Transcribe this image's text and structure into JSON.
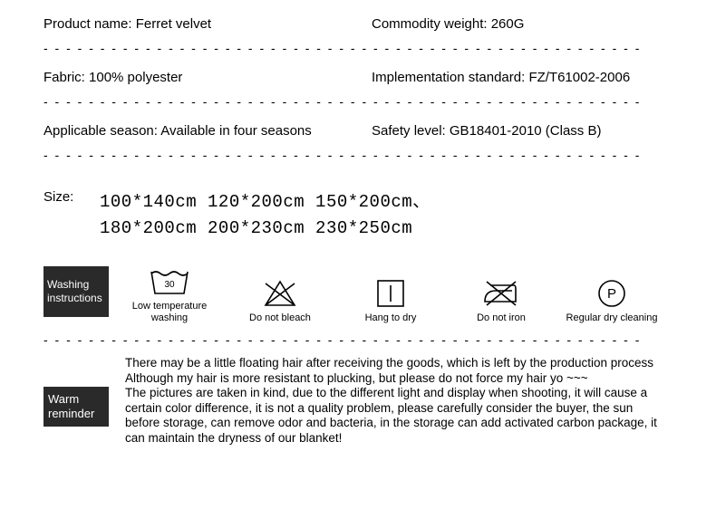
{
  "specs": {
    "productName": {
      "label": "Product name:",
      "value": "Ferret velvet"
    },
    "weight": {
      "label": "Commodity weight:",
      "value": "260G"
    },
    "fabric": {
      "label": "Fabric:",
      "value": "100% polyester"
    },
    "standard": {
      "label": "Implementation standard:",
      "value": "FZ/T61002-2006"
    },
    "season": {
      "label": "Applicable season:",
      "value": "Available in four seasons"
    },
    "safety": {
      "label": "Safety level:",
      "value": "GB18401-2010 (Class B)"
    }
  },
  "size": {
    "label": "Size:",
    "line1": "100*140cm 120*200cm 150*200cm、",
    "line2": "180*200cm 200*230cm 230*250cm"
  },
  "washing": {
    "heading": "Washing instructions",
    "items": [
      {
        "caption": "Low temperature washing"
      },
      {
        "caption": "Do not bleach"
      },
      {
        "caption": "Hang to dry"
      },
      {
        "caption": "Do not iron"
      },
      {
        "caption": "Regular dry cleaning"
      }
    ]
  },
  "reminder": {
    "heading": "Warm reminder",
    "text": "There may be a little floating hair after receiving the goods, which is left by the production process\nAlthough my hair is more resistant to plucking, but please do not force my hair yo ~~~\nThe pictures are taken in kind, due to the different light and display when shooting, it will cause a certain color difference, it is not a quality problem, please carefully consider the buyer, the sun before storage, can remove odor and bacteria, in the storage can add activated carbon package, it can maintain the dryness of our blanket!"
  },
  "dashes": "- - - - - - - - - - - - - - - - - - - - - - - - - - - - - - - - - - - - - - - - - - - - - - - - - - - - -"
}
